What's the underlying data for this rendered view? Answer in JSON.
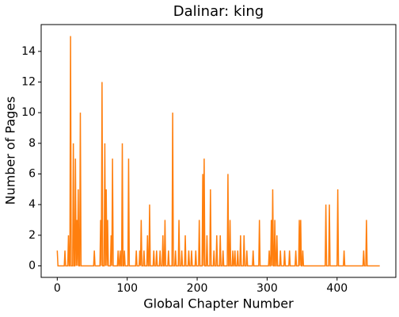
{
  "chart_data": {
    "type": "line",
    "title": "Dalinar: king",
    "x_label": "Global Chapter Number",
    "y_label": "Number of Pages",
    "x": [
      0,
      1,
      10,
      11,
      12,
      15,
      16,
      17,
      18,
      19,
      20,
      22,
      23,
      24,
      25,
      26,
      27,
      28,
      29,
      30,
      31,
      32,
      33,
      34,
      52,
      53,
      54,
      61,
      62,
      63,
      64,
      65,
      67,
      68,
      69,
      70,
      71,
      72,
      73,
      76,
      77,
      78,
      79,
      80,
      86,
      87,
      88,
      89,
      90,
      91,
      92,
      93,
      94,
      95,
      96,
      97,
      101,
      102,
      103,
      112,
      113,
      114,
      117,
      118,
      119,
      120,
      121,
      123,
      124,
      125,
      128,
      129,
      130,
      131,
      132,
      133,
      137,
      138,
      139,
      141,
      142,
      143,
      146,
      147,
      148,
      150,
      151,
      152,
      153,
      154,
      155,
      158,
      159,
      160,
      164,
      165,
      166,
      168,
      169,
      170,
      173,
      174,
      175,
      177,
      178,
      179,
      182,
      183,
      184,
      187,
      188,
      189,
      191,
      192,
      193,
      197,
      198,
      199,
      202,
      203,
      204,
      207,
      208,
      209,
      210,
      211,
      213,
      214,
      215,
      218,
      219,
      220,
      223,
      224,
      225,
      227,
      228,
      229,
      232,
      233,
      234,
      236,
      237,
      238,
      243,
      244,
      245,
      246,
      247,
      248,
      250,
      251,
      252,
      253,
      254,
      255,
      257,
      258,
      259,
      261,
      262,
      263,
      266,
      267,
      268,
      270,
      271,
      272,
      279,
      280,
      281,
      288,
      289,
      290,
      302,
      303,
      304,
      305,
      306,
      307,
      308,
      309,
      310,
      311,
      312,
      313,
      314,
      315,
      318,
      319,
      320,
      324,
      325,
      326,
      331,
      332,
      333,
      340,
      341,
      342,
      345,
      346,
      347,
      348,
      349,
      350,
      351,
      352,
      383,
      384,
      385,
      388,
      389,
      390,
      400,
      401,
      402,
      409,
      410,
      411,
      437,
      438,
      439,
      441,
      442,
      443,
      461
    ],
    "series": [
      {
        "color": "#ff7f0e",
        "values": [
          1,
          0,
          0,
          1,
          0,
          0,
          2,
          0,
          0,
          15,
          0,
          0,
          8,
          0,
          0,
          7,
          0,
          3,
          0,
          5,
          0,
          0,
          10,
          0,
          0,
          1,
          0,
          0,
          3,
          0,
          12,
          0,
          0,
          8,
          0,
          5,
          0,
          3,
          0,
          0,
          2,
          0,
          7,
          0,
          0,
          1,
          0,
          0,
          1,
          0,
          0,
          8,
          0,
          0,
          1,
          0,
          0,
          7,
          0,
          0,
          1,
          0,
          0,
          1,
          0,
          3,
          0,
          0,
          1,
          0,
          0,
          2,
          0,
          0,
          4,
          0,
          0,
          1,
          0,
          0,
          1,
          0,
          0,
          1,
          0,
          0,
          2,
          0,
          0,
          3,
          0,
          0,
          1,
          0,
          0,
          10,
          0,
          0,
          1,
          0,
          0,
          3,
          0,
          0,
          1,
          0,
          0,
          2,
          0,
          0,
          1,
          0,
          0,
          1,
          0,
          0,
          1,
          0,
          0,
          3,
          0,
          0,
          6,
          0,
          7,
          0,
          0,
          2,
          0,
          0,
          5,
          0,
          0,
          1,
          0,
          0,
          2,
          0,
          0,
          2,
          0,
          0,
          1,
          0,
          0,
          6,
          0,
          0,
          3,
          0,
          0,
          1,
          0,
          0,
          1,
          0,
          0,
          1,
          0,
          0,
          2,
          0,
          0,
          2,
          0,
          0,
          1,
          0,
          0,
          1,
          0,
          0,
          3,
          0,
          0,
          1,
          0,
          0,
          3,
          0,
          5,
          0,
          0,
          3,
          0,
          0,
          2,
          0,
          0,
          1,
          0,
          0,
          1,
          0,
          0,
          1,
          0,
          0,
          1,
          0,
          0,
          3,
          0,
          3,
          0,
          0,
          1,
          0,
          0,
          4,
          0,
          0,
          4,
          0,
          0,
          5,
          0,
          0,
          1,
          0,
          0,
          1,
          0,
          0,
          3,
          0,
          0
        ]
      }
    ],
    "xlim": [
      -23,
      484
    ],
    "ylim": [
      -0.75,
      15.75
    ],
    "xticks": [
      0,
      100,
      200,
      300,
      400
    ],
    "yticks": [
      0,
      2,
      4,
      6,
      8,
      10,
      12,
      14
    ]
  }
}
